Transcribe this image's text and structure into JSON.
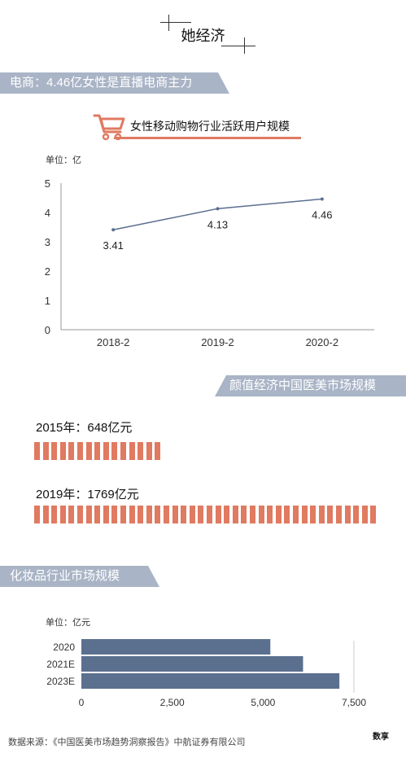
{
  "header": {
    "title": "她经济"
  },
  "sections": {
    "ecommerce": {
      "banner": "电商：4.46亿女性是直播电商主力"
    },
    "beauty": {
      "banner": "颜值经济中国医美市场规模"
    },
    "cosmetics": {
      "banner": "化妆品行业市场规模"
    }
  },
  "line_chart": {
    "title": "女性移动购物行业活跃用户规模",
    "unit": "单位：亿"
  },
  "beauty_stats": {
    "items": [
      {
        "label": "2015年：648亿元",
        "value": 648
      },
      {
        "label": "2019年：1769亿元",
        "value": 1769
      }
    ]
  },
  "bar_chart": {
    "unit": "单位：亿元"
  },
  "footer": {
    "source": "数据来源：《中国医美市场趋势洞察报告》中航证券有限公司",
    "logo": "数享"
  },
  "colors": {
    "accent": "#e07a61",
    "banner": "#a9b4c6",
    "bar": "#5b6f8f",
    "line": "#5b6f8f"
  },
  "icons": {
    "cart": "shopping-cart-icon"
  },
  "chart_data": [
    {
      "type": "line",
      "title": "女性移动购物行业活跃用户规模",
      "ylabel": "单位：亿",
      "categories": [
        "2018-2",
        "2019-2",
        "2020-2"
      ],
      "values": [
        3.41,
        4.13,
        4.46
      ],
      "data_labels": [
        "3.41",
        "4.13",
        "4.46"
      ],
      "yticks": [
        "0",
        "1",
        "2",
        "3",
        "4",
        "5"
      ],
      "ylim": [
        0,
        5
      ],
      "grid": false
    },
    {
      "type": "bar",
      "orientation": "horizontal",
      "ylabel": "单位：亿元",
      "categories": [
        "2020",
        "2021E",
        "2023E"
      ],
      "values": [
        5200,
        6100,
        7100
      ],
      "xticks": [
        "0",
        "2,500",
        "5,000",
        "7,500"
      ],
      "xlim": [
        0,
        7500
      ],
      "grid": false
    }
  ]
}
